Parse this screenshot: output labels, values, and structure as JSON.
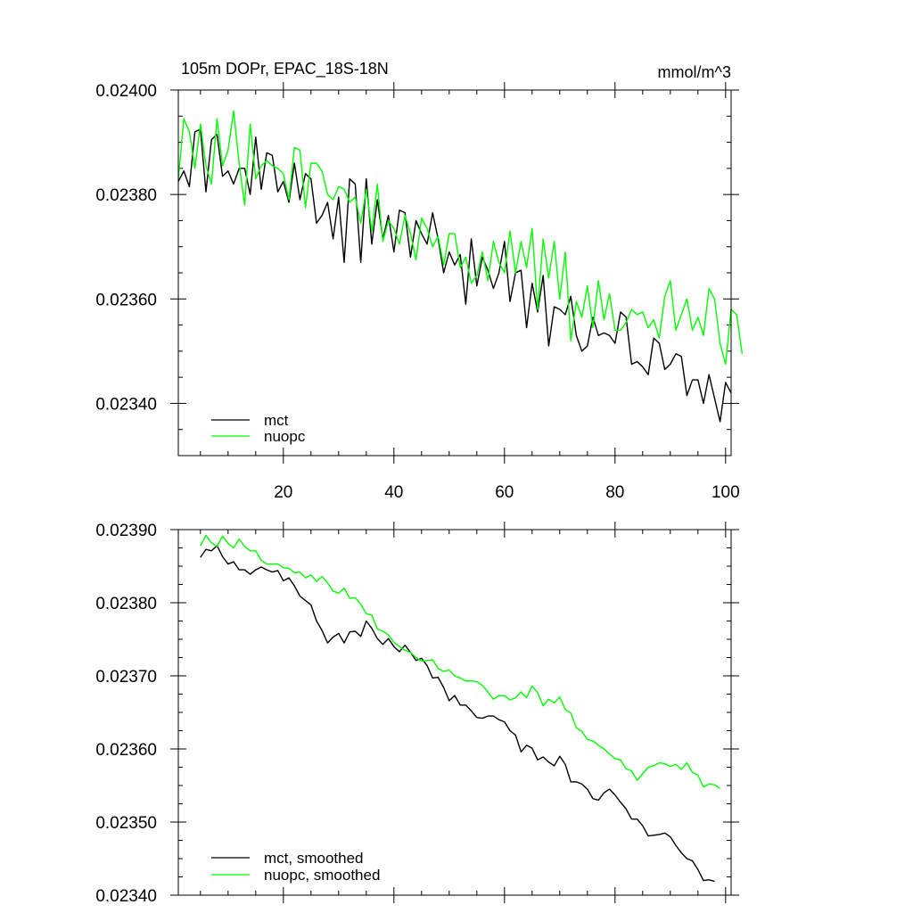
{
  "chart_data": [
    {
      "type": "line",
      "title_left": "105m DOPr, EPAC_18S-18N",
      "title_right": "mmol/m^3",
      "xlim": [
        1,
        101
      ],
      "ylim": [
        0.0233,
        0.024
      ],
      "x_ticks": [
        20,
        40,
        60,
        80,
        100
      ],
      "x_tick_labels": [
        "20",
        "40",
        "60",
        "80",
        "100"
      ],
      "y_ticks": [
        0.0234,
        0.0236,
        0.0238,
        0.024
      ],
      "y_tick_labels": [
        "0.02340",
        "0.02360",
        "0.02380",
        "0.02400"
      ],
      "legend_position": "bottom-left",
      "series": [
        {
          "name": "mct",
          "color": "#000000",
          "x_start": 1,
          "values": [
            0.023825,
            0.023845,
            0.023815,
            0.02392,
            0.023925,
            0.023805,
            0.023905,
            0.023915,
            0.023835,
            0.023845,
            0.02382,
            0.02385,
            0.02385,
            0.0238,
            0.02391,
            0.02381,
            0.02388,
            0.023875,
            0.023805,
            0.023825,
            0.023785,
            0.02386,
            0.02379,
            0.02384,
            0.02383,
            0.023745,
            0.02376,
            0.023785,
            0.023715,
            0.023795,
            0.02367,
            0.02383,
            0.02382,
            0.02367,
            0.02383,
            0.023705,
            0.02379,
            0.023715,
            0.02376,
            0.02369,
            0.02377,
            0.023765,
            0.02368,
            0.02375,
            0.023725,
            0.023705,
            0.023765,
            0.023715,
            0.02365,
            0.02369,
            0.023665,
            0.023685,
            0.02359,
            0.023715,
            0.023625,
            0.02368,
            0.023655,
            0.02362,
            0.02365,
            0.02371,
            0.023595,
            0.02365,
            0.023655,
            0.023545,
            0.02363,
            0.023575,
            0.023645,
            0.02351,
            0.023585,
            0.02358,
            0.02357,
            0.023605,
            0.02353,
            0.0235,
            0.02351,
            0.023565,
            0.02353,
            0.023535,
            0.02353,
            0.023515,
            0.023575,
            0.023565,
            0.023475,
            0.02348,
            0.02347,
            0.023455,
            0.023525,
            0.023515,
            0.023465,
            0.023475,
            0.023495,
            0.02349,
            0.023415,
            0.023445,
            0.023445,
            0.0234,
            0.023455,
            0.02341,
            0.023365,
            0.02344,
            0.02342
          ]
        },
        {
          "name": "nuopc",
          "color": "#00ff00",
          "x_start": 1,
          "values": [
            0.02383,
            0.023945,
            0.02392,
            0.02385,
            0.023935,
            0.023855,
            0.02382,
            0.023945,
            0.023855,
            0.023885,
            0.02396,
            0.02386,
            0.02378,
            0.023935,
            0.02383,
            0.023855,
            0.023865,
            0.023855,
            0.02385,
            0.02384,
            0.02379,
            0.02389,
            0.023885,
            0.023775,
            0.02386,
            0.02386,
            0.023845,
            0.0238,
            0.02379,
            0.023815,
            0.02381,
            0.023785,
            0.023795,
            0.023745,
            0.02381,
            0.02373,
            0.02382,
            0.02371,
            0.02375,
            0.023735,
            0.023705,
            0.02376,
            0.023725,
            0.023675,
            0.023755,
            0.023735,
            0.0237,
            0.02372,
            0.023665,
            0.023725,
            0.023725,
            0.02366,
            0.02368,
            0.02363,
            0.023645,
            0.02369,
            0.023635,
            0.02371,
            0.02367,
            0.02365,
            0.02373,
            0.02365,
            0.02371,
            0.02366,
            0.023735,
            0.02358,
            0.023715,
            0.02364,
            0.02371,
            0.0236,
            0.02369,
            0.02352,
            0.023595,
            0.023565,
            0.023625,
            0.023545,
            0.023635,
            0.02356,
            0.02361,
            0.02354,
            0.02354,
            0.023555,
            0.02358,
            0.02357,
            0.023575,
            0.023545,
            0.02356,
            0.023525,
            0.023605,
            0.023635,
            0.02354,
            0.02357,
            0.0236,
            0.02354,
            0.023565,
            0.02353,
            0.02362,
            0.0236,
            0.023515,
            0.023475,
            0.02358,
            0.02357,
            0.023495
          ]
        }
      ]
    },
    {
      "type": "line",
      "title_left": "",
      "title_right": "",
      "xlim": [
        1,
        101
      ],
      "ylim": [
        0.0234,
        0.0239
      ],
      "x_ticks": [
        20,
        40,
        60,
        80,
        100
      ],
      "x_tick_labels": [],
      "y_ticks": [
        0.0234,
        0.0235,
        0.0236,
        0.0237,
        0.0238,
        0.0239
      ],
      "y_tick_labels": [
        "0.02340",
        "0.02350",
        "0.02360",
        "0.02370",
        "0.02380",
        "0.02390"
      ],
      "legend_position": "bottom-left",
      "series": [
        {
          "name": "mct, smoothed",
          "color": "#000000",
          "x_start": 5,
          "values": [
            0.023862,
            0.023873,
            0.023871,
            0.023878,
            0.023863,
            0.023853,
            0.023856,
            0.023845,
            0.023845,
            0.023839,
            0.023845,
            0.023849,
            0.023845,
            0.023842,
            0.023844,
            0.02383,
            0.023834,
            0.023823,
            0.023809,
            0.023803,
            0.023797,
            0.023775,
            0.023762,
            0.023745,
            0.023753,
            0.023758,
            0.023745,
            0.02376,
            0.023761,
            0.023754,
            0.023775,
            0.023765,
            0.023751,
            0.023743,
            0.023751,
            0.02374,
            0.023733,
            0.023742,
            0.023732,
            0.023721,
            0.023724,
            0.023714,
            0.023697,
            0.023698,
            0.023684,
            0.023666,
            0.023673,
            0.02366,
            0.02366,
            0.023652,
            0.023643,
            0.023642,
            0.023645,
            0.023645,
            0.02364,
            0.023637,
            0.023625,
            0.023619,
            0.023596,
            0.023605,
            0.023601,
            0.023585,
            0.023589,
            0.023582,
            0.023577,
            0.02359,
            0.023579,
            0.023555,
            0.023555,
            0.023552,
            0.023545,
            0.023532,
            0.02353,
            0.02354,
            0.023545,
            0.023537,
            0.023527,
            0.023518,
            0.023504,
            0.023504,
            0.023495,
            0.023481,
            0.023482,
            0.023483,
            0.023485,
            0.02348,
            0.023468,
            0.023458,
            0.02345,
            0.023447,
            0.023435,
            0.02342,
            0.023421,
            0.023419
          ]
        },
        {
          "name": "nuopc, smoothed",
          "color": "#00ff00",
          "x_start": 5,
          "values": [
            0.023878,
            0.023892,
            0.023882,
            0.023877,
            0.023891,
            0.023881,
            0.023875,
            0.023887,
            0.023877,
            0.023871,
            0.023871,
            0.023858,
            0.023853,
            0.023853,
            0.023853,
            0.023848,
            0.023847,
            0.023841,
            0.023842,
            0.023834,
            0.023838,
            0.023829,
            0.023836,
            0.023827,
            0.023816,
            0.023813,
            0.02382,
            0.023806,
            0.023807,
            0.023798,
            0.023785,
            0.023783,
            0.023764,
            0.023761,
            0.023756,
            0.023746,
            0.02374,
            0.023735,
            0.023732,
            0.023725,
            0.02372,
            0.023721,
            0.023722,
            0.02371,
            0.023706,
            0.023708,
            0.0237,
            0.023697,
            0.023693,
            0.023693,
            0.023692,
            0.023687,
            0.023678,
            0.023668,
            0.023673,
            0.023673,
            0.023667,
            0.02367,
            0.023678,
            0.02367,
            0.023686,
            0.023677,
            0.023659,
            0.023668,
            0.023663,
            0.023671,
            0.023654,
            0.023649,
            0.023629,
            0.023624,
            0.023613,
            0.023611,
            0.023605,
            0.0236,
            0.023593,
            0.023587,
            0.023585,
            0.023573,
            0.02357,
            0.023557,
            0.023566,
            0.023575,
            0.023577,
            0.023581,
            0.02358,
            0.023576,
            0.023579,
            0.023572,
            0.023581,
            0.023568,
            0.023564,
            0.023548,
            0.023552,
            0.023551,
            0.023546
          ]
        }
      ]
    }
  ]
}
